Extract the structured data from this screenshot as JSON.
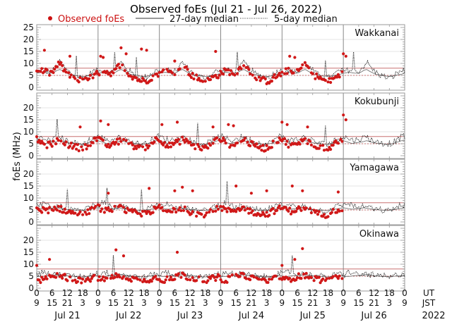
{
  "chart_data": {
    "type": "scatter",
    "title": "Observed foEs (Jul 21 - Jul 26, 2022)",
    "ylabel": "foEs (MHz)",
    "xlabel": "",
    "legend": {
      "placement": "top",
      "entries": [
        {
          "label": "Observed foEs",
          "style": "red-dot",
          "color": "#cc1111"
        },
        {
          "label": "27-day median",
          "style": "solid-line",
          "color": "#333333"
        },
        {
          "label": "5-day median",
          "style": "dotted-line",
          "color": "#333333"
        }
      ]
    },
    "reference_lines": {
      "upper": {
        "value": 8,
        "color": "#c87070",
        "style": "solid"
      },
      "lower": {
        "value": 5,
        "color": "#c87070",
        "style": "dotted"
      }
    },
    "x_axis": {
      "range_hours_ut": [
        0,
        144
      ],
      "ut_row_label": "UT",
      "jst_row_label": "JST",
      "ut_ticks": [
        "0",
        "6",
        "12",
        "18",
        "0",
        "6",
        "12",
        "18",
        "0",
        "6",
        "12",
        "18",
        "0",
        "6",
        "12",
        "18",
        "0",
        "6",
        "12",
        "18",
        "0",
        "6",
        "12",
        "18",
        "0"
      ],
      "jst_ticks": [
        "9",
        "15",
        "21",
        "3",
        "9",
        "15",
        "21",
        "3",
        "9",
        "15",
        "21",
        "3",
        "9",
        "15",
        "21",
        "3",
        "9",
        "15",
        "21",
        "3",
        "9",
        "15",
        "21",
        "3",
        "9"
      ],
      "days": [
        "Jul 21",
        "Jul 22",
        "Jul 23",
        "Jul 24",
        "Jul 25",
        "Jul 26"
      ],
      "year": "2022"
    },
    "panels": [
      {
        "station": "Wakkanai",
        "ylim": [
          0,
          25
        ],
        "yticks": [
          "0",
          "5",
          "10",
          "15",
          "20",
          "25"
        ],
        "observed_days": 5,
        "daily_profile_observed": [
          6,
          6.5,
          7,
          6.5,
          6,
          6,
          7,
          9,
          10,
          8,
          6.5,
          5,
          4.5,
          4,
          3,
          3,
          2.5,
          3,
          4,
          4.5,
          5,
          6
        ],
        "daily_profile_5day": [
          6.5,
          7,
          7.5,
          7,
          6.5,
          6.5,
          7.5,
          9,
          10.5,
          9,
          7.5,
          6.5,
          5.5,
          5,
          4.5,
          4,
          4,
          4.5,
          5.5,
          6.5,
          7,
          7
        ],
        "outliers": [
          [
            3,
            15.5
          ],
          [
            13,
            13
          ],
          [
            25,
            13
          ],
          [
            26,
            12.5
          ],
          [
            33,
            16.5
          ],
          [
            35,
            14
          ],
          [
            41,
            16
          ],
          [
            43,
            15.5
          ],
          [
            54,
            11
          ],
          [
            70,
            15
          ],
          [
            99,
            13
          ],
          [
            101,
            12.5
          ],
          [
            120,
            14
          ],
          [
            121,
            13
          ]
        ]
      },
      {
        "station": "Kokubunji",
        "ylim": [
          0,
          25
        ],
        "yticks": [
          "0",
          "5",
          "10",
          "15",
          "20"
        ],
        "observed_days": 5,
        "daily_profile_observed": [
          7,
          6,
          5,
          4,
          4.5,
          5,
          5.5,
          6,
          7,
          6,
          5,
          4.5,
          4,
          4,
          3.5,
          3,
          3.5,
          4,
          5,
          6,
          7,
          7
        ],
        "daily_profile_5day": [
          8,
          7.5,
          7,
          6.5,
          6.5,
          7,
          7,
          7.5,
          8,
          7,
          6.5,
          6,
          5.5,
          5.5,
          5,
          5,
          5,
          5.5,
          6.5,
          7,
          8,
          8
        ],
        "outliers": [
          [
            17,
            12
          ],
          [
            25,
            14.5
          ],
          [
            28,
            13
          ],
          [
            49,
            13
          ],
          [
            55,
            14
          ],
          [
            69,
            12
          ],
          [
            75,
            13
          ],
          [
            77,
            12.5
          ],
          [
            96,
            14
          ],
          [
            98,
            13
          ],
          [
            106,
            12
          ],
          [
            120,
            17
          ],
          [
            121,
            15
          ]
        ]
      },
      {
        "station": "Yamagawa",
        "ylim": [
          0,
          25
        ],
        "yticks": [
          "0",
          "5",
          "10",
          "15",
          "20"
        ],
        "observed_days": 5,
        "daily_profile_observed": [
          6,
          5.5,
          5,
          4.5,
          5,
          5,
          5.5,
          6,
          5.5,
          5,
          4.5,
          4,
          4,
          3.5,
          3.5,
          3,
          3.5,
          4,
          4.5,
          5,
          5.5,
          6
        ],
        "daily_profile_5day": [
          7,
          7.5,
          8,
          7,
          6.5,
          6,
          6,
          6.5,
          6.5,
          6,
          5.5,
          5,
          5,
          5,
          4.5,
          4.5,
          5,
          5.5,
          6,
          6.5,
          7,
          7
        ],
        "outliers": [
          [
            28,
            12
          ],
          [
            44,
            14
          ],
          [
            54,
            13
          ],
          [
            57,
            14.5
          ],
          [
            61,
            13
          ],
          [
            78,
            15
          ],
          [
            84,
            12
          ],
          [
            90,
            13
          ],
          [
            100,
            15
          ],
          [
            104,
            13
          ],
          [
            118,
            12.5
          ]
        ]
      },
      {
        "station": "Okinawa",
        "ylim": [
          0,
          25
        ],
        "yticks": [
          "0",
          "5",
          "10",
          "15",
          "20"
        ],
        "observed_days": 5,
        "daily_profile_observed": [
          4,
          3.5,
          3.5,
          4,
          4.5,
          4.5,
          5,
          5,
          5.5,
          5,
          4.5,
          4,
          4,
          3.5,
          3.5,
          3,
          3,
          3.5,
          4,
          4,
          4.5,
          4.5
        ],
        "daily_profile_5day": [
          5.5,
          6,
          7,
          6.5,
          6,
          5.5,
          5.5,
          6,
          6,
          5.5,
          5.5,
          5,
          5,
          5,
          5,
          4.5,
          4.5,
          5,
          5.5,
          5.5,
          6,
          6
        ],
        "outliers": [
          [
            0,
            9.5
          ],
          [
            5,
            12
          ],
          [
            31,
            16
          ],
          [
            34,
            13.5
          ],
          [
            55,
            15
          ],
          [
            96,
            9.5
          ],
          [
            101,
            12
          ],
          [
            104,
            16.5
          ]
        ]
      }
    ]
  }
}
